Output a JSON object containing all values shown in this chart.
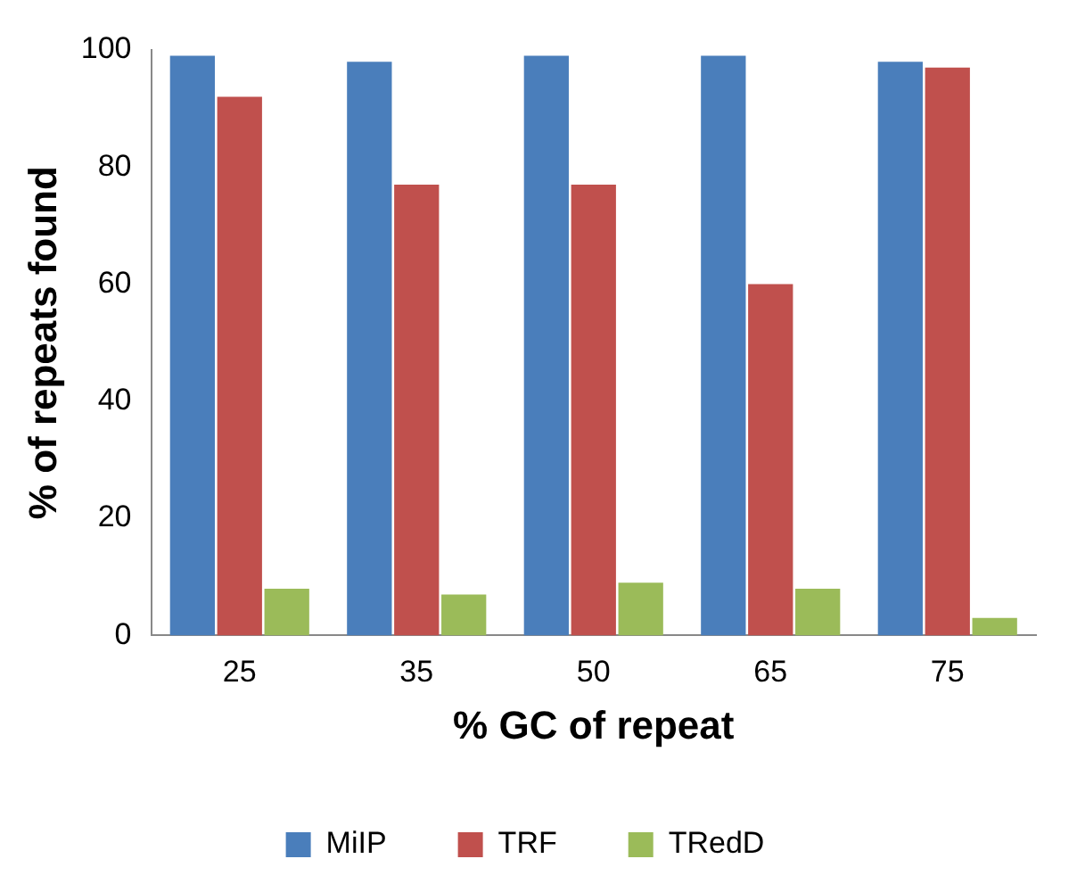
{
  "chart_data": {
    "type": "bar",
    "xlabel": "% GC of repeat",
    "ylabel": "% of repeats found",
    "categories": [
      "25",
      "35",
      "50",
      "65",
      "75"
    ],
    "series": [
      {
        "name": "MiIP",
        "color": "#4a7ebb",
        "values": [
          99,
          98,
          99,
          99,
          98
        ]
      },
      {
        "name": "TRF",
        "color": "#c0504d",
        "values": [
          92,
          77,
          77,
          60,
          97
        ]
      },
      {
        "name": "TRedD",
        "color": "#9bbb59",
        "values": [
          8,
          7,
          9,
          8,
          3
        ]
      }
    ],
    "ylim": [
      0,
      100
    ],
    "yticks": [
      0,
      20,
      40,
      60,
      80,
      100
    ],
    "grid": false,
    "legend": "bottom"
  }
}
